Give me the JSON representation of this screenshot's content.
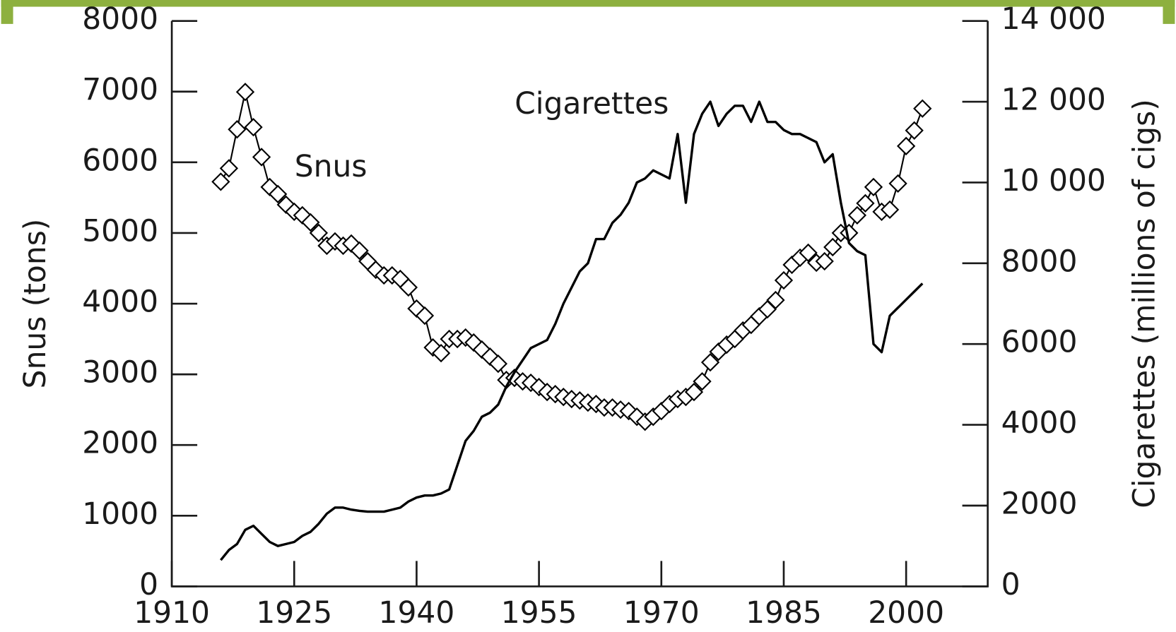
{
  "chart_data": {
    "type": "line",
    "ylabel": "Snus (tons)",
    "y2label": "Cigarettes (millions of cigs)",
    "x": [
      1916,
      1917,
      1918,
      1919,
      1920,
      1921,
      1922,
      1923,
      1924,
      1925,
      1926,
      1927,
      1928,
      1929,
      1930,
      1931,
      1932,
      1933,
      1934,
      1935,
      1936,
      1937,
      1938,
      1939,
      1940,
      1941,
      1942,
      1943,
      1944,
      1945,
      1946,
      1947,
      1948,
      1949,
      1950,
      1951,
      1952,
      1953,
      1954,
      1955,
      1956,
      1957,
      1958,
      1959,
      1960,
      1961,
      1962,
      1963,
      1964,
      1965,
      1966,
      1967,
      1968,
      1969,
      1970,
      1971,
      1972,
      1973,
      1974,
      1975,
      1976,
      1977,
      1978,
      1979,
      1980,
      1981,
      1982,
      1983,
      1984,
      1985,
      1986,
      1987,
      1988,
      1989,
      1990,
      1991,
      1992,
      1993,
      1994,
      1995,
      1996,
      1997,
      1998,
      1999,
      2000,
      2001,
      2002
    ],
    "series": [
      {
        "name": "Snus",
        "color": "#000000",
        "marker": "diamond",
        "axis": "y",
        "values": [
          5725,
          5915,
          6466,
          6995,
          6497,
          6074,
          5650,
          5550,
          5400,
          5300,
          5250,
          5150,
          5000,
          4820,
          4880,
          4820,
          4850,
          4750,
          4600,
          4480,
          4400,
          4400,
          4350,
          4230,
          3930,
          3830,
          3380,
          3300,
          3500,
          3500,
          3520,
          3450,
          3350,
          3250,
          3150,
          2920,
          2950,
          2900,
          2880,
          2820,
          2750,
          2720,
          2680,
          2650,
          2630,
          2600,
          2580,
          2530,
          2530,
          2500,
          2480,
          2400,
          2330,
          2400,
          2480,
          2580,
          2650,
          2680,
          2750,
          2900,
          3170,
          3320,
          3420,
          3500,
          3620,
          3700,
          3820,
          3920,
          4050,
          4330,
          4550,
          4650,
          4720,
          4580,
          4600,
          4800,
          5000,
          5000,
          5250,
          5420,
          5650,
          5300,
          5330,
          5700,
          6230,
          6450,
          6760
        ]
      },
      {
        "name": "Cigarettes",
        "color": "#000000",
        "marker": "none",
        "axis": "y2",
        "values": [
          650,
          900,
          1050,
          1400,
          1500,
          1300,
          1100,
          1000,
          1050,
          1100,
          1250,
          1350,
          1550,
          1800,
          1950,
          1950,
          1900,
          1870,
          1850,
          1850,
          1850,
          1900,
          1950,
          2100,
          2200,
          2250,
          2250,
          2300,
          2400,
          3000,
          3600,
          3850,
          4200,
          4300,
          4500,
          4950,
          5300,
          5600,
          5900,
          6000,
          6100,
          6500,
          7000,
          7400,
          7800,
          8000,
          8600,
          8600,
          9000,
          9200,
          9500,
          10000,
          10100,
          10300,
          10200,
          10100,
          11200,
          9500,
          11200,
          11700,
          12000,
          11400,
          11700,
          11900,
          11900,
          11500,
          12000,
          11500,
          11500,
          11300,
          11200,
          11200,
          11100,
          11000,
          10500,
          10700,
          9500,
          8500,
          8300,
          8200,
          6000,
          5800,
          6700,
          6900,
          7100,
          7300,
          7500
        ]
      }
    ],
    "xlim": [
      1910,
      2010
    ],
    "xticks": [
      1910,
      1925,
      1940,
      1955,
      1970,
      1985,
      2000
    ],
    "ylim": [
      0,
      8000
    ],
    "yticks": [
      0,
      1000,
      2000,
      3000,
      4000,
      5000,
      6000,
      7000,
      8000
    ],
    "y2lim": [
      0,
      14000
    ],
    "y2ticks": [
      0,
      2000,
      4000,
      6000,
      8000,
      {
        "value": 10000,
        "label": "10 000"
      },
      {
        "value": 12000,
        "label": "12 000"
      },
      {
        "value": 14000,
        "label": "14 000"
      }
    ]
  }
}
